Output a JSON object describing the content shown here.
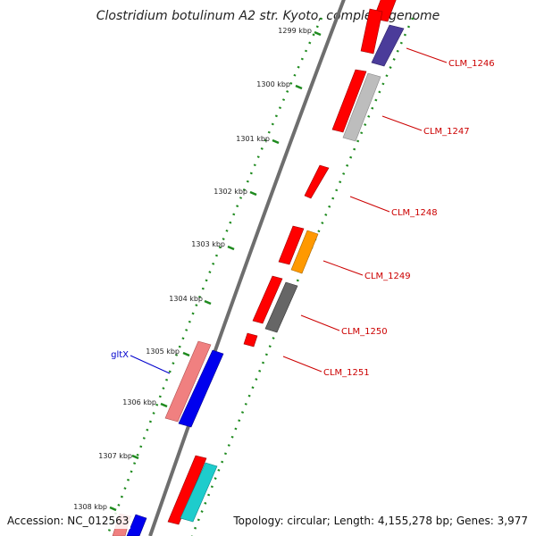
{
  "title": "Clostridium botulinum A2 str. Kyoto, complete genome",
  "footer": {
    "accession": "Accession: NC_012563",
    "summary": "Topology: circular; Length: 4,155,278 bp; Genes: 3,977"
  },
  "colors": {
    "backbone": "#777777",
    "tick": "#1e8a1e",
    "label_red": "#cc0000",
    "label_blue": "#0000cc",
    "gene_red": "#ff0000",
    "gene_pink": "#f08080",
    "gene_blue": "#0000ee",
    "gene_purple": "#4b3c9a",
    "gene_gray": "#bdbdbd",
    "gene_darkgray": "#666666",
    "gene_orange": "#ff9900",
    "gene_cyan": "#1ecccc"
  },
  "ticks": [
    "1299 kbp",
    "1300 kbp",
    "1301 kbp",
    "1302 kbp",
    "1303 kbp",
    "1304 kbp",
    "1305 kbp",
    "1306 kbp",
    "1307 kbp",
    "1308 kbp"
  ],
  "genes": [
    {
      "label": "CLM_1246",
      "color": "gene_purple"
    },
    {
      "label": "CLM_1247",
      "color": "gene_gray"
    },
    {
      "label": "CLM_1248",
      "color": "gene_red"
    },
    {
      "label": "CLM_1249",
      "color": "gene_orange"
    },
    {
      "label": "CLM_1250",
      "color": "gene_darkgray"
    },
    {
      "label": "CLM_1251",
      "color": "gene_red"
    },
    {
      "label": "gltX",
      "color": "gene_blue"
    }
  ]
}
